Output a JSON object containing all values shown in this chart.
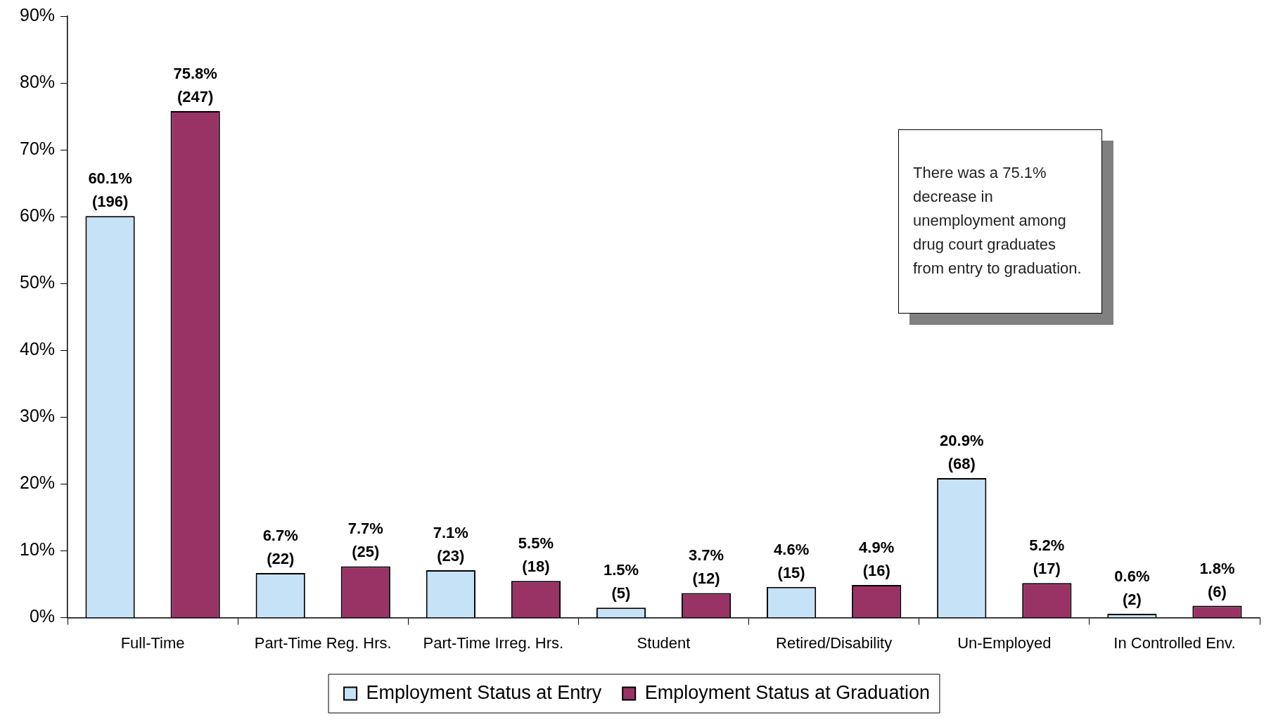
{
  "chart_data": {
    "type": "bar",
    "categories": [
      "Full-Time",
      "Part-Time Reg. Hrs.",
      "Part-Time Irreg. Hrs.",
      "Student",
      "Retired/Disability",
      "Un-Employed",
      "In Controlled Env."
    ],
    "series": [
      {
        "name": "Employment Status at Entry",
        "color": "#c6e2f7",
        "values": [
          60.1,
          6.7,
          7.1,
          1.5,
          4.6,
          20.9,
          0.6
        ],
        "value_labels": [
          "60.1% (196)",
          "6.7% (22)",
          "7.1% (23)",
          "1.5% (5)",
          "4.6% (15)",
          "20.9% (68)",
          "0.6% (2)"
        ]
      },
      {
        "name": "Employment Status at Graduation",
        "color": "#993366",
        "values": [
          75.8,
          7.7,
          5.5,
          3.7,
          4.9,
          5.2,
          1.8
        ],
        "value_labels": [
          "75.8% (247)",
          "7.7% (25)",
          "5.5% (18)",
          "3.7% (12)",
          "4.9% (16)",
          "5.2% (17)",
          "1.8% (6)"
        ]
      }
    ],
    "ylim": [
      0,
      90
    ],
    "yticks": [
      {
        "value": 0,
        "label": "0%"
      },
      {
        "value": 10,
        "label": "10%"
      },
      {
        "value": 20,
        "label": "20%"
      },
      {
        "value": 30,
        "label": "30%"
      },
      {
        "value": 40,
        "label": "40%"
      },
      {
        "value": 50,
        "label": "50%"
      },
      {
        "value": 60,
        "label": "60%"
      },
      {
        "value": 70,
        "label": "70%"
      },
      {
        "value": 80,
        "label": "80%"
      },
      {
        "value": 90,
        "label": "90%"
      }
    ],
    "grid": false,
    "legend": "bottom",
    "annotations": [
      "There was a 75.1% decrease in unemployment among drug court graduates from entry to graduation."
    ]
  }
}
